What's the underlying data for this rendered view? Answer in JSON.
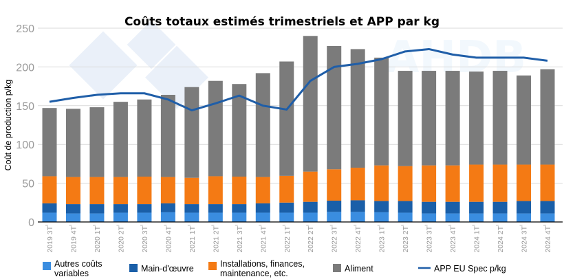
{
  "chart_data": {
    "type": "bar",
    "stacked": true,
    "title": "Coûts totaux estimés trimestriels et APP par kg",
    "xlabel": "",
    "ylabel": "Coût de production p/kg",
    "ylim": [
      0,
      250
    ],
    "yticks": [
      0,
      50,
      100,
      150,
      200,
      250
    ],
    "grid": true,
    "legend_position": "bottom",
    "categories": [
      "2019 3T",
      "2019 4T",
      "2020 1T",
      "2020 2T",
      "2020 3T",
      "2020 4T",
      "2021 1T",
      "2021 2T",
      "2021 3T",
      "2021 4T",
      "2022 1T",
      "2022 2T",
      "2022 3T",
      "2022 4T",
      "2023 1T",
      "2023 2T",
      "2023 3T",
      "2023 4T",
      "2024 1T",
      "2024 2T",
      "2024 3T",
      "2024 4T"
    ],
    "series": [
      {
        "name": "Autres coûts variables",
        "type": "bar",
        "color": "#3a8de0",
        "values": [
          12,
          11,
          11,
          12,
          12,
          12.5,
          12,
          12,
          12,
          12,
          12,
          12,
          13,
          13,
          12.5,
          12,
          11,
          11,
          11,
          11,
          11,
          11
        ]
      },
      {
        "name": "Main-d'œuvre",
        "type": "bar",
        "color": "#1a5fa8",
        "values": [
          12,
          12,
          12,
          11,
          11,
          11.5,
          11,
          11,
          11,
          12,
          13,
          14,
          14.5,
          15,
          14.5,
          15,
          15,
          15,
          15,
          15,
          16,
          16
        ]
      },
      {
        "name": "Installations, finances, maintenance, etc.",
        "type": "bar",
        "color": "#f47a14",
        "values": [
          35,
          35,
          35,
          35,
          35.5,
          34,
          34,
          36,
          35.5,
          34,
          34.5,
          39,
          40.5,
          42,
          46,
          45,
          47,
          47,
          48,
          48,
          47,
          47
        ]
      },
      {
        "name": "Aliment",
        "type": "bar",
        "color": "#7b7b7b",
        "values": [
          88,
          88,
          90,
          97,
          99.5,
          106,
          117,
          123,
          119.5,
          134,
          147.5,
          175,
          159,
          153,
          139,
          123,
          122,
          122,
          120,
          121,
          115,
          123
        ]
      },
      {
        "name": "APP EU Spec p/kg",
        "type": "line",
        "color": "#1f5ea8",
        "values": [
          155,
          160,
          164,
          166,
          166,
          158,
          144,
          153,
          163,
          150,
          145,
          182,
          200,
          204,
          210,
          220,
          223,
          216,
          212,
          212,
          212,
          208
        ]
      }
    ],
    "legend": [
      "Autres coûts\nvariables",
      "Main-d'œuvre",
      "Installations, finances,\nmaintenance, etc.",
      "Aliment",
      "APP EU Spec p/kg"
    ]
  },
  "legend_labels": {
    "l0a": "Autres coûts",
    "l0b": "variables",
    "l1": "Main-d'œuvre",
    "l2a": "Installations, finances,",
    "l2b": "maintenance, etc.",
    "l3": "Aliment",
    "l4": "APP EU Spec p/kg"
  }
}
